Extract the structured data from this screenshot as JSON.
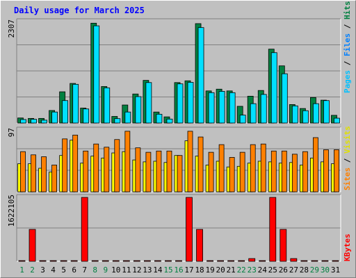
{
  "colors": {
    "background": "#c0c0c0",
    "grid": "#808080",
    "hits": "#008040",
    "files": "#00e0ff",
    "pages": "#00c0ff",
    "visits": "#ffff00",
    "sites": "#ff8000",
    "kbytes": "#ff0000",
    "weekday": "#008040",
    "title": "#0000ff"
  },
  "chart_data": [
    {
      "type": "bar",
      "title": "Daily usage for March 2025",
      "ylim": [
        0,
        2307
      ],
      "ymax_label": "2307",
      "categories": [
        "1",
        "2",
        "3",
        "4",
        "5",
        "6",
        "7",
        "8",
        "9",
        "10",
        "11",
        "12",
        "13",
        "14",
        "15",
        "16",
        "17",
        "18",
        "19",
        "20",
        "21",
        "22",
        "23",
        "24",
        "25",
        "26",
        "27",
        "28",
        "29",
        "30",
        "31"
      ],
      "weekend_days": [
        1,
        2,
        8,
        9,
        15,
        16,
        22,
        23,
        29,
        30
      ],
      "series": [
        {
          "name": "Hits",
          "values": [
            115,
            105,
            105,
            285,
            710,
            900,
            340,
            2270,
            830,
            150,
            410,
            660,
            970,
            250,
            140,
            920,
            960,
            2260,
            730,
            770,
            730,
            380,
            610,
            740,
            1680,
            1300,
            420,
            330,
            580,
            520,
            175
          ]
        },
        {
          "name": "Files",
          "values": [
            80,
            85,
            65,
            250,
            510,
            880,
            320,
            2210,
            800,
            100,
            250,
            600,
            920,
            200,
            90,
            890,
            925,
            2170,
            690,
            720,
            690,
            180,
            440,
            650,
            1600,
            1120,
            390,
            280,
            440,
            510,
            110
          ]
        },
        {
          "name": "Pages",
          "values": [
            0,
            0,
            0,
            0,
            0,
            0,
            0,
            0,
            0,
            0,
            0,
            0,
            0,
            0,
            0,
            0,
            0,
            0,
            0,
            0,
            0,
            0,
            0,
            0,
            0,
            0,
            0,
            0,
            0,
            0,
            0
          ]
        }
      ],
      "legend": [
        "Pages",
        "Files",
        "Hits"
      ]
    },
    {
      "type": "bar",
      "ylim": [
        0,
        97
      ],
      "ymax_label": "97",
      "categories": [
        "1",
        "2",
        "3",
        "4",
        "5",
        "6",
        "7",
        "8",
        "9",
        "10",
        "11",
        "12",
        "13",
        "14",
        "15",
        "16",
        "17",
        "18",
        "19",
        "20",
        "21",
        "22",
        "23",
        "24",
        "25",
        "26",
        "27",
        "28",
        "29",
        "30",
        "31"
      ],
      "series": [
        {
          "name": "Visits",
          "values": [
            44,
            44,
            37,
            31,
            57,
            81,
            45,
            56,
            53,
            61,
            63,
            50,
            47,
            48,
            46,
            57,
            80,
            56,
            42,
            48,
            39,
            40,
            45,
            48,
            47,
            45,
            46,
            42,
            53,
            47,
            44
          ]
        },
        {
          "name": "Sites",
          "values": [
            63,
            58,
            55,
            42,
            83,
            89,
            64,
            75,
            70,
            82,
            95,
            69,
            62,
            64,
            64,
            57,
            95,
            86,
            62,
            74,
            54,
            62,
            74,
            75,
            64,
            64,
            59,
            63,
            85,
            66,
            66
          ]
        }
      ],
      "legend": [
        "Sites",
        "Visits"
      ]
    },
    {
      "type": "bar",
      "ylim": [
        0,
        1622105
      ],
      "ymax_label": "1622105",
      "categories": [
        "1",
        "2",
        "3",
        "4",
        "5",
        "6",
        "7",
        "8",
        "9",
        "10",
        "11",
        "12",
        "13",
        "14",
        "15",
        "16",
        "17",
        "18",
        "19",
        "20",
        "21",
        "22",
        "23",
        "24",
        "25",
        "26",
        "27",
        "28",
        "29",
        "30",
        "31"
      ],
      "series": [
        {
          "name": "KBytes",
          "values": [
            18000,
            810000,
            18000,
            18000,
            18000,
            18000,
            1622105,
            18000,
            18000,
            18000,
            18000,
            18000,
            18000,
            18000,
            18000,
            18000,
            1622105,
            810000,
            18000,
            18000,
            18000,
            18000,
            70000,
            18000,
            1622105,
            810000,
            70000,
            18000,
            18000,
            18000,
            18000
          ]
        }
      ],
      "legend": [
        "KBytes"
      ]
    }
  ]
}
